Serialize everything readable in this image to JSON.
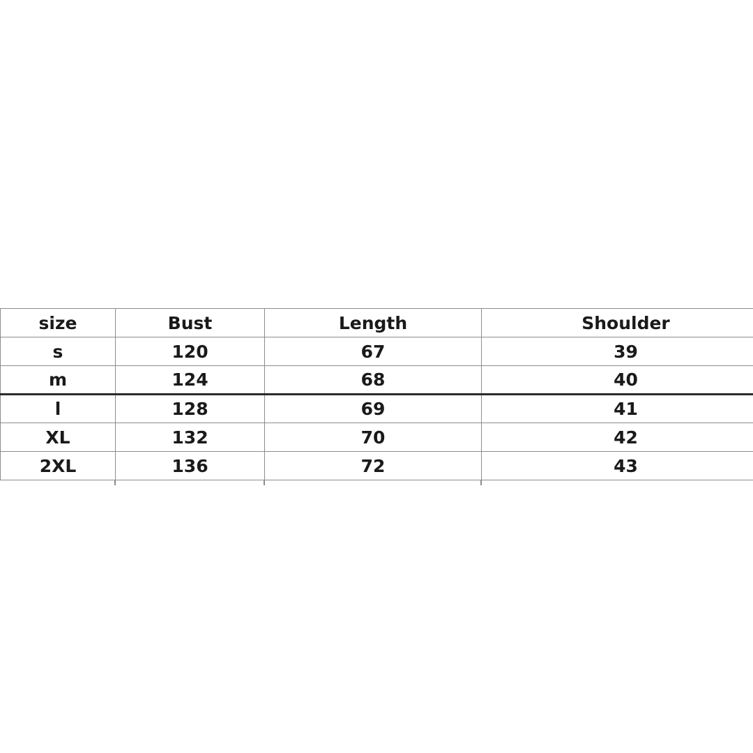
{
  "colors": {
    "background": "#ffffff",
    "grid_border": "#8c8c8c",
    "heavy_rule": "#2b2b2b",
    "text": "#1a1a1a"
  },
  "chart_data": {
    "type": "table",
    "title": "",
    "columns": [
      "size",
      "Bust",
      "Length",
      "Shoulder"
    ],
    "rows": [
      [
        "s",
        "120",
        "67",
        "39"
      ],
      [
        "m",
        "124",
        "68",
        "40"
      ],
      [
        "l",
        "128",
        "69",
        "41"
      ],
      [
        "XL",
        "132",
        "70",
        "42"
      ],
      [
        "2XL",
        "136",
        "72",
        "43"
      ]
    ],
    "layout_hints": {
      "grid": true,
      "heavy_rule_below_row_index": 1,
      "clipped_right_edge": true,
      "all_text_bold": true,
      "alignment": "center"
    }
  }
}
